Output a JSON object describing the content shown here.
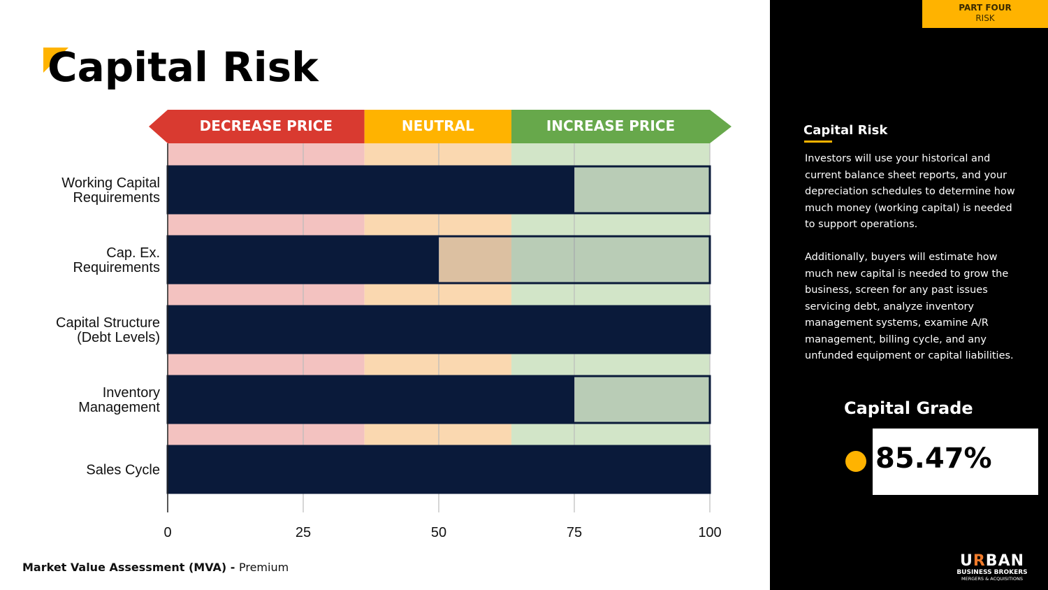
{
  "slide": {
    "title": "Capital Risk",
    "footer_bold": "Market Value Assessment (MVA) - ",
    "footer_normal": "Premium"
  },
  "sidebar": {
    "part": "PART FOUR",
    "section": "RISK",
    "title": "Capital Risk",
    "paragraph1": "Investors will use your historical and current balance sheet reports, and your depreciation schedules to determine how much money (working capital) is needed to support operations.",
    "paragraph2": "Additionally, buyers will estimate how much new capital is needed to grow the business, screen for any past issues servicing debt, analyze inventory management systems, examine A/R management, billing cycle, and any unfunded equipment or capital liabilities.",
    "grade_label": "Capital Grade",
    "grade_value": "85.47%",
    "logo_line1": "URBAN",
    "logo_line2": "BUSINESS BROKERS",
    "logo_line3": "MERGERS & ACQUISITIONS"
  },
  "chart_data": {
    "type": "bar",
    "orientation": "horizontal",
    "categories": [
      [
        "Working Capital",
        "Requirements"
      ],
      [
        "Cap. Ex.",
        "Requirements"
      ],
      [
        "Capital Structure",
        "(Debt Levels)"
      ],
      [
        "Inventory",
        "Management"
      ],
      [
        "Sales Cycle"
      ]
    ],
    "values": [
      75,
      50,
      100,
      75,
      100
    ],
    "xlim": [
      0,
      100
    ],
    "xticks": [
      "0",
      "25",
      "50",
      "75",
      "100"
    ],
    "xtick_values": [
      0,
      25,
      50,
      75,
      100
    ],
    "zones": [
      {
        "label": "DECREASE PRICE",
        "from": 0,
        "to": 36.3,
        "color": "#d93a30",
        "light": "#f3c2c0"
      },
      {
        "label": "NEUTRAL",
        "from": 36.3,
        "to": 63.4,
        "color": "#ffb300",
        "light": "#fad8b0"
      },
      {
        "label": "INCREASE PRICE",
        "from": 63.4,
        "to": 100,
        "color": "#67a84b",
        "light": "#d2e5c8"
      }
    ],
    "bar_color": "#0a1a3a",
    "grid": true
  }
}
